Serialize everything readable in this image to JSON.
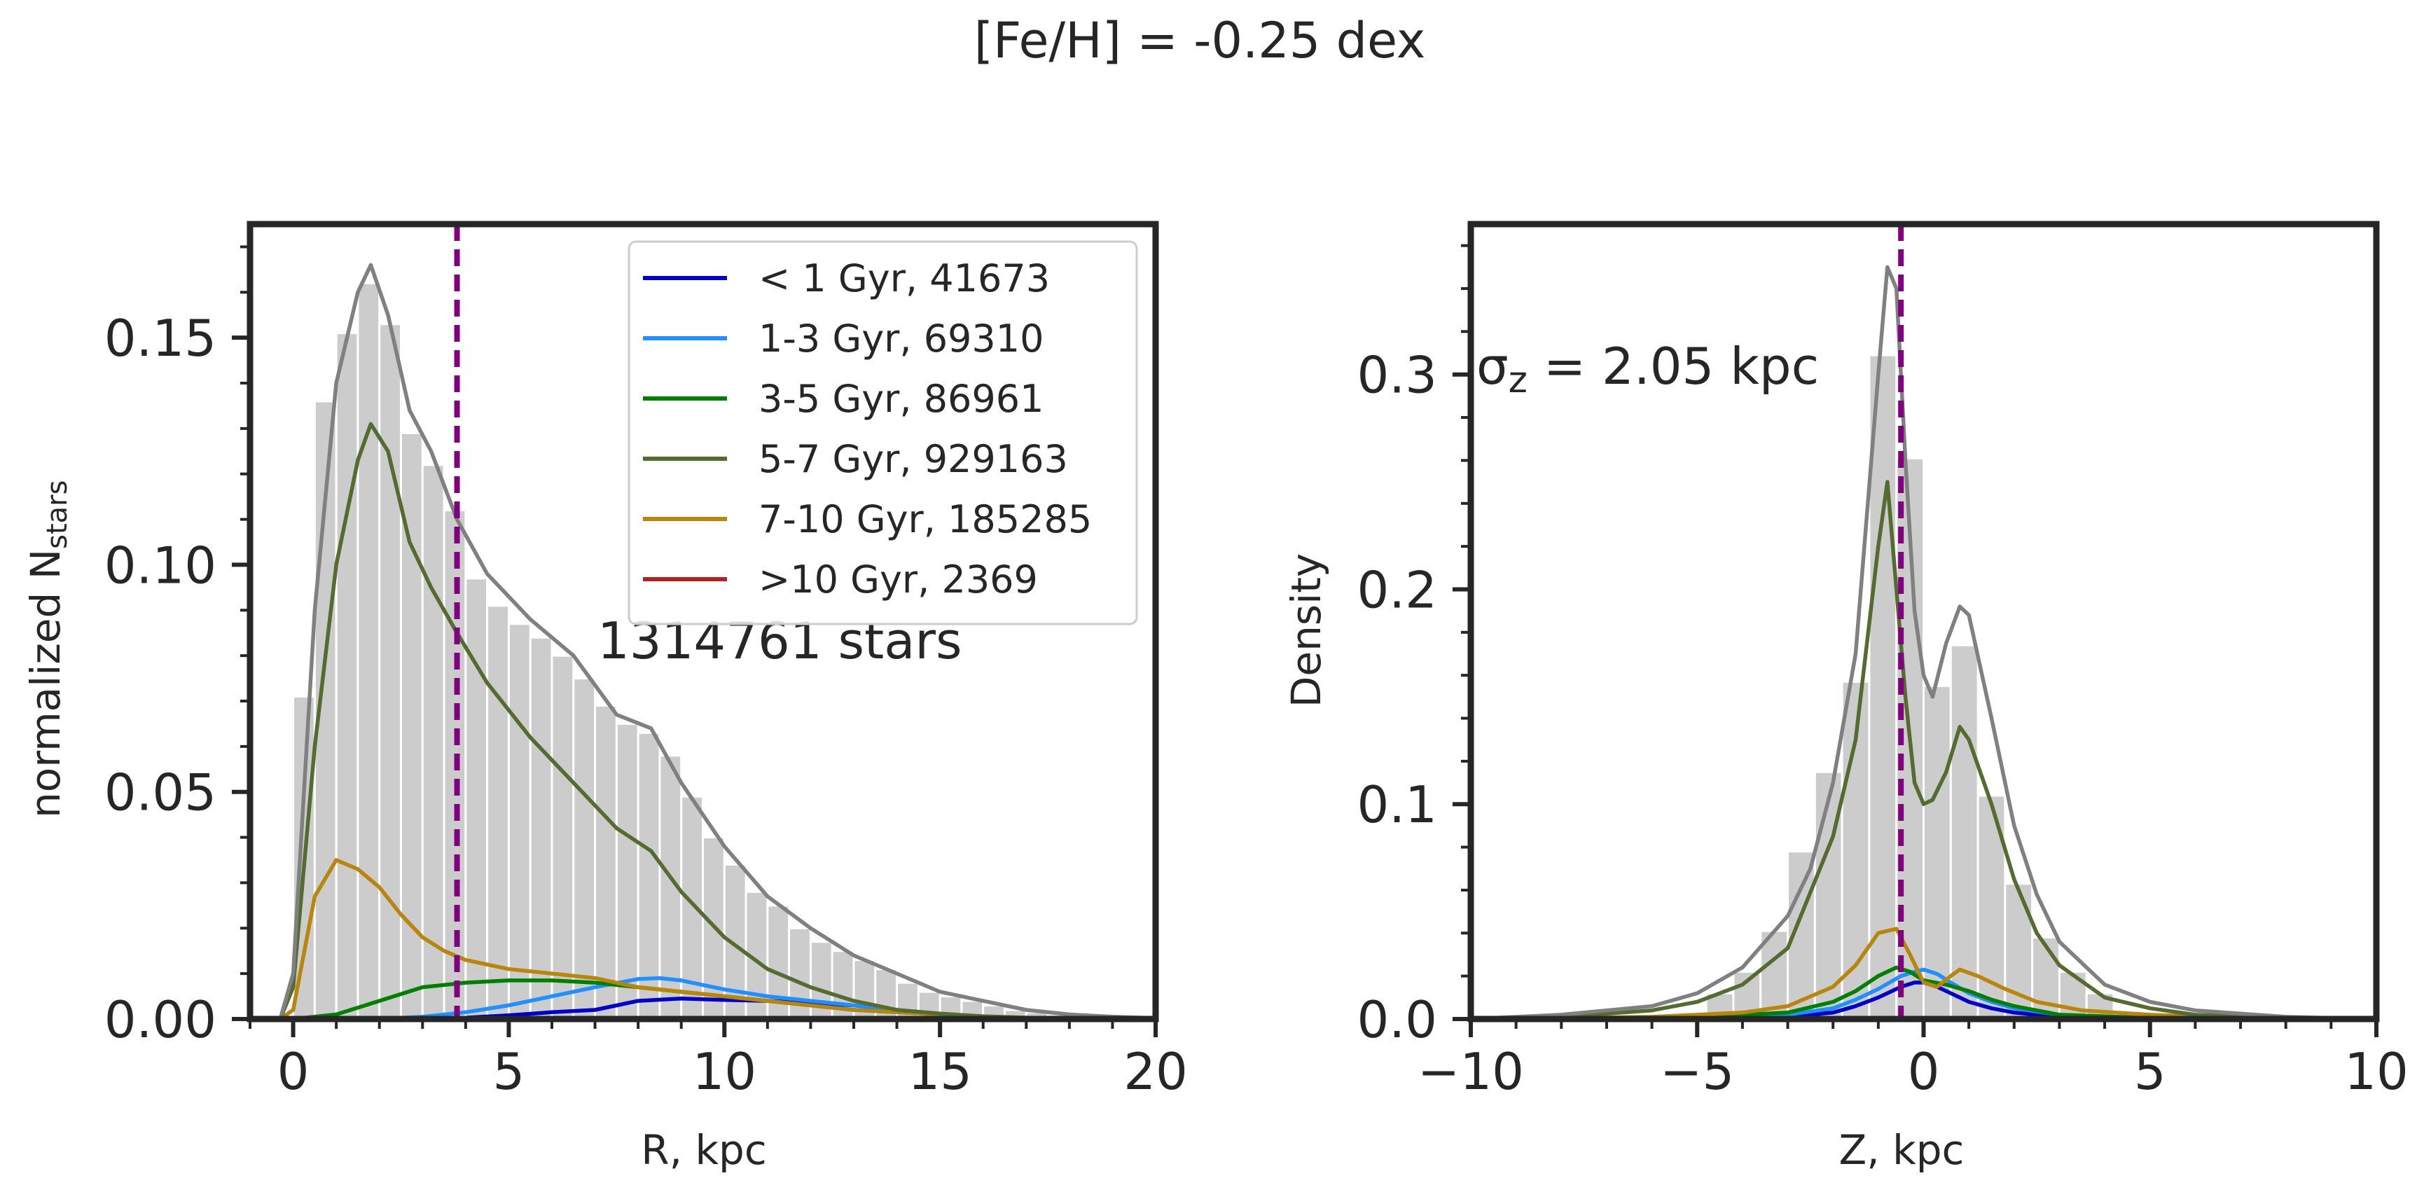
{
  "chart_data": [
    {
      "type": "histogram+kde",
      "suptitle": "[Fe/H] = -0.25 dex",
      "xlabel": "R, kpc",
      "ylabel_main": "normalized N",
      "ylabel_sub": "stars",
      "xlim": [
        -1,
        20
      ],
      "ylim": [
        0,
        0.175
      ],
      "xticks": [
        0,
        5,
        10,
        15,
        20
      ],
      "xtick_labels": [
        "0",
        "5",
        "10",
        "15",
        "20"
      ],
      "yticks": [
        0.0,
        0.05,
        0.1,
        0.15
      ],
      "ytick_labels": [
        "0.00",
        "0.05",
        "0.10",
        "0.15"
      ],
      "annotation": "1314761 stars",
      "vline": {
        "x": 3.8,
        "color": "#800080",
        "style": "dashed"
      },
      "hist": {
        "bin_width": 0.5,
        "bin_centers": [
          0.25,
          0.75,
          1.25,
          1.75,
          2.25,
          2.75,
          3.25,
          3.75,
          4.25,
          4.75,
          5.25,
          5.75,
          6.25,
          6.75,
          7.25,
          7.75,
          8.25,
          8.75,
          9.25,
          9.75,
          10.25,
          10.75,
          11.25,
          11.75,
          12.25,
          12.75,
          13.25,
          13.75,
          14.25,
          14.75,
          15.25,
          15.75,
          16.25,
          16.75,
          17.25,
          17.75,
          18.25,
          18.75,
          19.25,
          19.75
        ],
        "values": [
          0.071,
          0.136,
          0.151,
          0.162,
          0.153,
          0.129,
          0.122,
          0.112,
          0.097,
          0.091,
          0.087,
          0.084,
          0.08,
          0.075,
          0.069,
          0.065,
          0.063,
          0.058,
          0.049,
          0.04,
          0.034,
          0.028,
          0.025,
          0.02,
          0.017,
          0.015,
          0.013,
          0.011,
          0.008,
          0.006,
          0.005,
          0.004,
          0.003,
          0.002,
          0.0015,
          0.001,
          0.0008,
          0.0006,
          0.0004,
          0.0003
        ]
      },
      "kde": [
        {
          "name": "total",
          "color": "#808080",
          "x": [
            -0.3,
            0,
            0.5,
            1,
            1.5,
            1.8,
            2.2,
            2.7,
            3.2,
            3.8,
            4.5,
            5.5,
            6.5,
            7.5,
            8.3,
            9,
            10,
            11,
            12,
            13,
            14,
            15,
            16,
            17,
            18,
            19,
            20
          ],
          "y": [
            0,
            0.01,
            0.09,
            0.14,
            0.16,
            0.166,
            0.155,
            0.134,
            0.125,
            0.11,
            0.098,
            0.088,
            0.08,
            0.067,
            0.064,
            0.052,
            0.038,
            0.027,
            0.02,
            0.014,
            0.01,
            0.006,
            0.004,
            0.002,
            0.001,
            0.0005,
            0.0002
          ]
        },
        {
          "name": "5-7 Gyr",
          "color": "#556b2f",
          "x": [
            -0.3,
            0,
            0.5,
            1,
            1.5,
            1.8,
            2.2,
            2.7,
            3.2,
            3.8,
            4.5,
            5.5,
            6.5,
            7.5,
            8.3,
            9,
            10,
            11,
            12,
            13,
            14,
            15,
            16,
            17,
            18,
            19,
            20
          ],
          "y": [
            0,
            0.007,
            0.06,
            0.1,
            0.123,
            0.131,
            0.125,
            0.105,
            0.095,
            0.085,
            0.074,
            0.062,
            0.052,
            0.042,
            0.037,
            0.028,
            0.018,
            0.011,
            0.007,
            0.004,
            0.002,
            0.0012,
            0.0006,
            0.0003,
            0.0001,
            0,
            0
          ]
        },
        {
          "name": "7-10 Gyr",
          "color": "#b8860b",
          "x": [
            -0.3,
            0,
            0.5,
            1,
            1.5,
            2,
            2.5,
            3,
            3.5,
            4,
            5,
            6,
            7,
            8,
            9,
            10,
            11,
            12,
            13,
            14,
            15,
            16,
            17,
            18,
            19,
            20
          ],
          "y": [
            0,
            0.002,
            0.027,
            0.035,
            0.033,
            0.029,
            0.023,
            0.018,
            0.015,
            0.013,
            0.011,
            0.01,
            0.009,
            0.007,
            0.006,
            0.005,
            0.004,
            0.003,
            0.002,
            0.0015,
            0.001,
            0.0006,
            0.0003,
            0.0001,
            0,
            0
          ]
        },
        {
          "name": "3-5 Gyr",
          "color": "#008000",
          "x": [
            0,
            1,
            2,
            3,
            4,
            5,
            6,
            7,
            8,
            9,
            10,
            11,
            12,
            13,
            14,
            15,
            16,
            17,
            18,
            19,
            20
          ],
          "y": [
            0,
            0.001,
            0.004,
            0.007,
            0.008,
            0.0085,
            0.0085,
            0.008,
            0.007,
            0.006,
            0.005,
            0.004,
            0.003,
            0.002,
            0.0015,
            0.001,
            0.0005,
            0.0002,
            0,
            0,
            0
          ]
        },
        {
          "name": "1-3 Gyr",
          "color": "#1e90ff",
          "x": [
            0,
            2,
            3,
            4,
            5,
            6,
            7,
            8,
            8.5,
            9,
            10,
            11,
            12,
            13,
            14,
            15,
            16,
            17,
            18,
            19,
            20
          ],
          "y": [
            0,
            0,
            0.0005,
            0.0015,
            0.003,
            0.005,
            0.007,
            0.0088,
            0.009,
            0.0085,
            0.0065,
            0.005,
            0.004,
            0.003,
            0.002,
            0.001,
            0.0005,
            0.0002,
            0,
            0,
            0
          ]
        },
        {
          "name": "< 1 Gyr",
          "color": "#0000cd",
          "x": [
            0,
            3,
            4,
            5,
            6,
            7,
            8,
            9,
            10,
            11,
            12,
            13,
            14,
            15,
            16,
            17,
            18,
            19,
            20
          ],
          "y": [
            0,
            0,
            0.0003,
            0.0008,
            0.0015,
            0.002,
            0.004,
            0.0045,
            0.0042,
            0.004,
            0.0035,
            0.003,
            0.002,
            0.001,
            0.0005,
            0.0002,
            0,
            0,
            0
          ]
        },
        {
          "name": ">10 Gyr",
          "color": "#b22222",
          "x": [
            0,
            2,
            5,
            8,
            12,
            16,
            20
          ],
          "y": [
            0,
            0,
            0.0001,
            0.0002,
            0.0001,
            0,
            0
          ]
        }
      ],
      "legend": [
        {
          "label": "< 1 Gyr, 41673",
          "color": "#0000cd"
        },
        {
          "label": "1-3 Gyr, 69310",
          "color": "#1e90ff"
        },
        {
          "label": "3-5 Gyr, 86961",
          "color": "#008000"
        },
        {
          "label": "5-7 Gyr, 929163",
          "color": "#556b2f"
        },
        {
          "label": "7-10 Gyr, 185285",
          "color": "#b8860b"
        },
        {
          "label": ">10 Gyr, 2369",
          "color": "#b22222"
        }
      ],
      "legend_placement": "top-right"
    },
    {
      "type": "histogram+kde",
      "xlabel": "Z, kpc",
      "ylabel": "Density",
      "xlim": [
        -10,
        10
      ],
      "ylim": [
        0,
        0.37
      ],
      "xticks": [
        -10,
        -5,
        0,
        5,
        10
      ],
      "xtick_labels": [
        "−10",
        "−5",
        "0",
        "5",
        "10"
      ],
      "yticks": [
        0.0,
        0.1,
        0.2,
        0.3
      ],
      "ytick_labels": [
        "0.0",
        "0.1",
        "0.2",
        "0.3"
      ],
      "annotation_main": "σ",
      "annotation_sub": "z",
      "annotation_rest": " = 2.05 kpc",
      "vline": {
        "x": -0.5,
        "color": "#800080",
        "style": "dashed"
      },
      "hist": {
        "bin_width": 0.6,
        "bin_centers": [
          -4.5,
          -3.9,
          -3.3,
          -2.7,
          -2.1,
          -1.5,
          -0.9,
          -0.3,
          0.3,
          0.9,
          1.5,
          2.1,
          2.7,
          3.3,
          3.9
        ],
        "values": [
          0.012,
          0.022,
          0.041,
          0.078,
          0.115,
          0.157,
          0.309,
          0.261,
          0.155,
          0.174,
          0.104,
          0.063,
          0.038,
          0.022,
          0.012
        ]
      },
      "kde": [
        {
          "name": "total",
          "color": "#808080",
          "x": [
            -10,
            -8,
            -6,
            -5,
            -4,
            -3,
            -2.5,
            -2,
            -1.5,
            -1,
            -0.8,
            -0.6,
            -0.4,
            -0.2,
            0,
            0.2,
            0.5,
            0.8,
            1,
            1.5,
            2,
            2.5,
            3,
            4,
            5,
            6,
            8,
            10
          ],
          "y": [
            0,
            0.002,
            0.006,
            0.012,
            0.024,
            0.048,
            0.07,
            0.11,
            0.17,
            0.3,
            0.35,
            0.34,
            0.26,
            0.19,
            0.16,
            0.15,
            0.175,
            0.192,
            0.188,
            0.14,
            0.09,
            0.058,
            0.036,
            0.016,
            0.008,
            0.004,
            0.001,
            0
          ]
        },
        {
          "name": "5-7 Gyr",
          "color": "#556b2f",
          "x": [
            -10,
            -8,
            -6,
            -5,
            -4,
            -3,
            -2,
            -1.5,
            -1,
            -0.8,
            -0.6,
            -0.4,
            -0.2,
            0,
            0.2,
            0.5,
            0.8,
            1,
            1.5,
            2,
            2.5,
            3,
            4,
            5,
            6,
            8,
            10
          ],
          "y": [
            0,
            0.001,
            0.004,
            0.008,
            0.016,
            0.033,
            0.085,
            0.13,
            0.22,
            0.25,
            0.2,
            0.15,
            0.11,
            0.1,
            0.102,
            0.115,
            0.136,
            0.13,
            0.1,
            0.065,
            0.04,
            0.025,
            0.01,
            0.005,
            0.002,
            0.0005,
            0
          ]
        },
        {
          "name": "7-10 Gyr",
          "color": "#b8860b",
          "x": [
            -10,
            -6,
            -4,
            -3,
            -2,
            -1.5,
            -1,
            -0.6,
            -0.3,
            0,
            0.3,
            0.6,
            0.8,
            1.2,
            1.8,
            2.5,
            3.5,
            5,
            7,
            10
          ],
          "y": [
            0,
            0.001,
            0.003,
            0.006,
            0.015,
            0.025,
            0.04,
            0.042,
            0.03,
            0.017,
            0.015,
            0.02,
            0.023,
            0.02,
            0.014,
            0.008,
            0.004,
            0.002,
            0.0005,
            0
          ]
        },
        {
          "name": "3-5 Gyr",
          "color": "#008000",
          "x": [
            -10,
            -5,
            -3,
            -2,
            -1.5,
            -1,
            -0.6,
            -0.3,
            0,
            0.5,
            1,
            1.5,
            2,
            3,
            5,
            10
          ],
          "y": [
            0,
            0.001,
            0.003,
            0.008,
            0.013,
            0.02,
            0.024,
            0.022,
            0.018,
            0.016,
            0.013,
            0.009,
            0.006,
            0.002,
            0.0005,
            0
          ]
        },
        {
          "name": "1-3 Gyr",
          "color": "#1e90ff",
          "x": [
            -10,
            -5,
            -3,
            -2,
            -1.5,
            -1,
            -0.5,
            -0.2,
            0,
            0.3,
            0.6,
            1,
            1.5,
            2,
            3,
            5,
            10
          ],
          "y": [
            0,
            0.0005,
            0.002,
            0.005,
            0.009,
            0.014,
            0.02,
            0.022,
            0.023,
            0.021,
            0.017,
            0.012,
            0.008,
            0.005,
            0.002,
            0.0005,
            0
          ]
        },
        {
          "name": "< 1 Gyr",
          "color": "#0000cd",
          "x": [
            -10,
            -5,
            -3,
            -2,
            -1.5,
            -1,
            -0.5,
            -0.2,
            0,
            0.3,
            0.6,
            1,
            1.5,
            2,
            3,
            5,
            10
          ],
          "y": [
            0,
            0.0003,
            0.001,
            0.003,
            0.006,
            0.01,
            0.015,
            0.017,
            0.017,
            0.015,
            0.012,
            0.008,
            0.005,
            0.003,
            0.001,
            0.0003,
            0
          ]
        }
      ]
    }
  ]
}
